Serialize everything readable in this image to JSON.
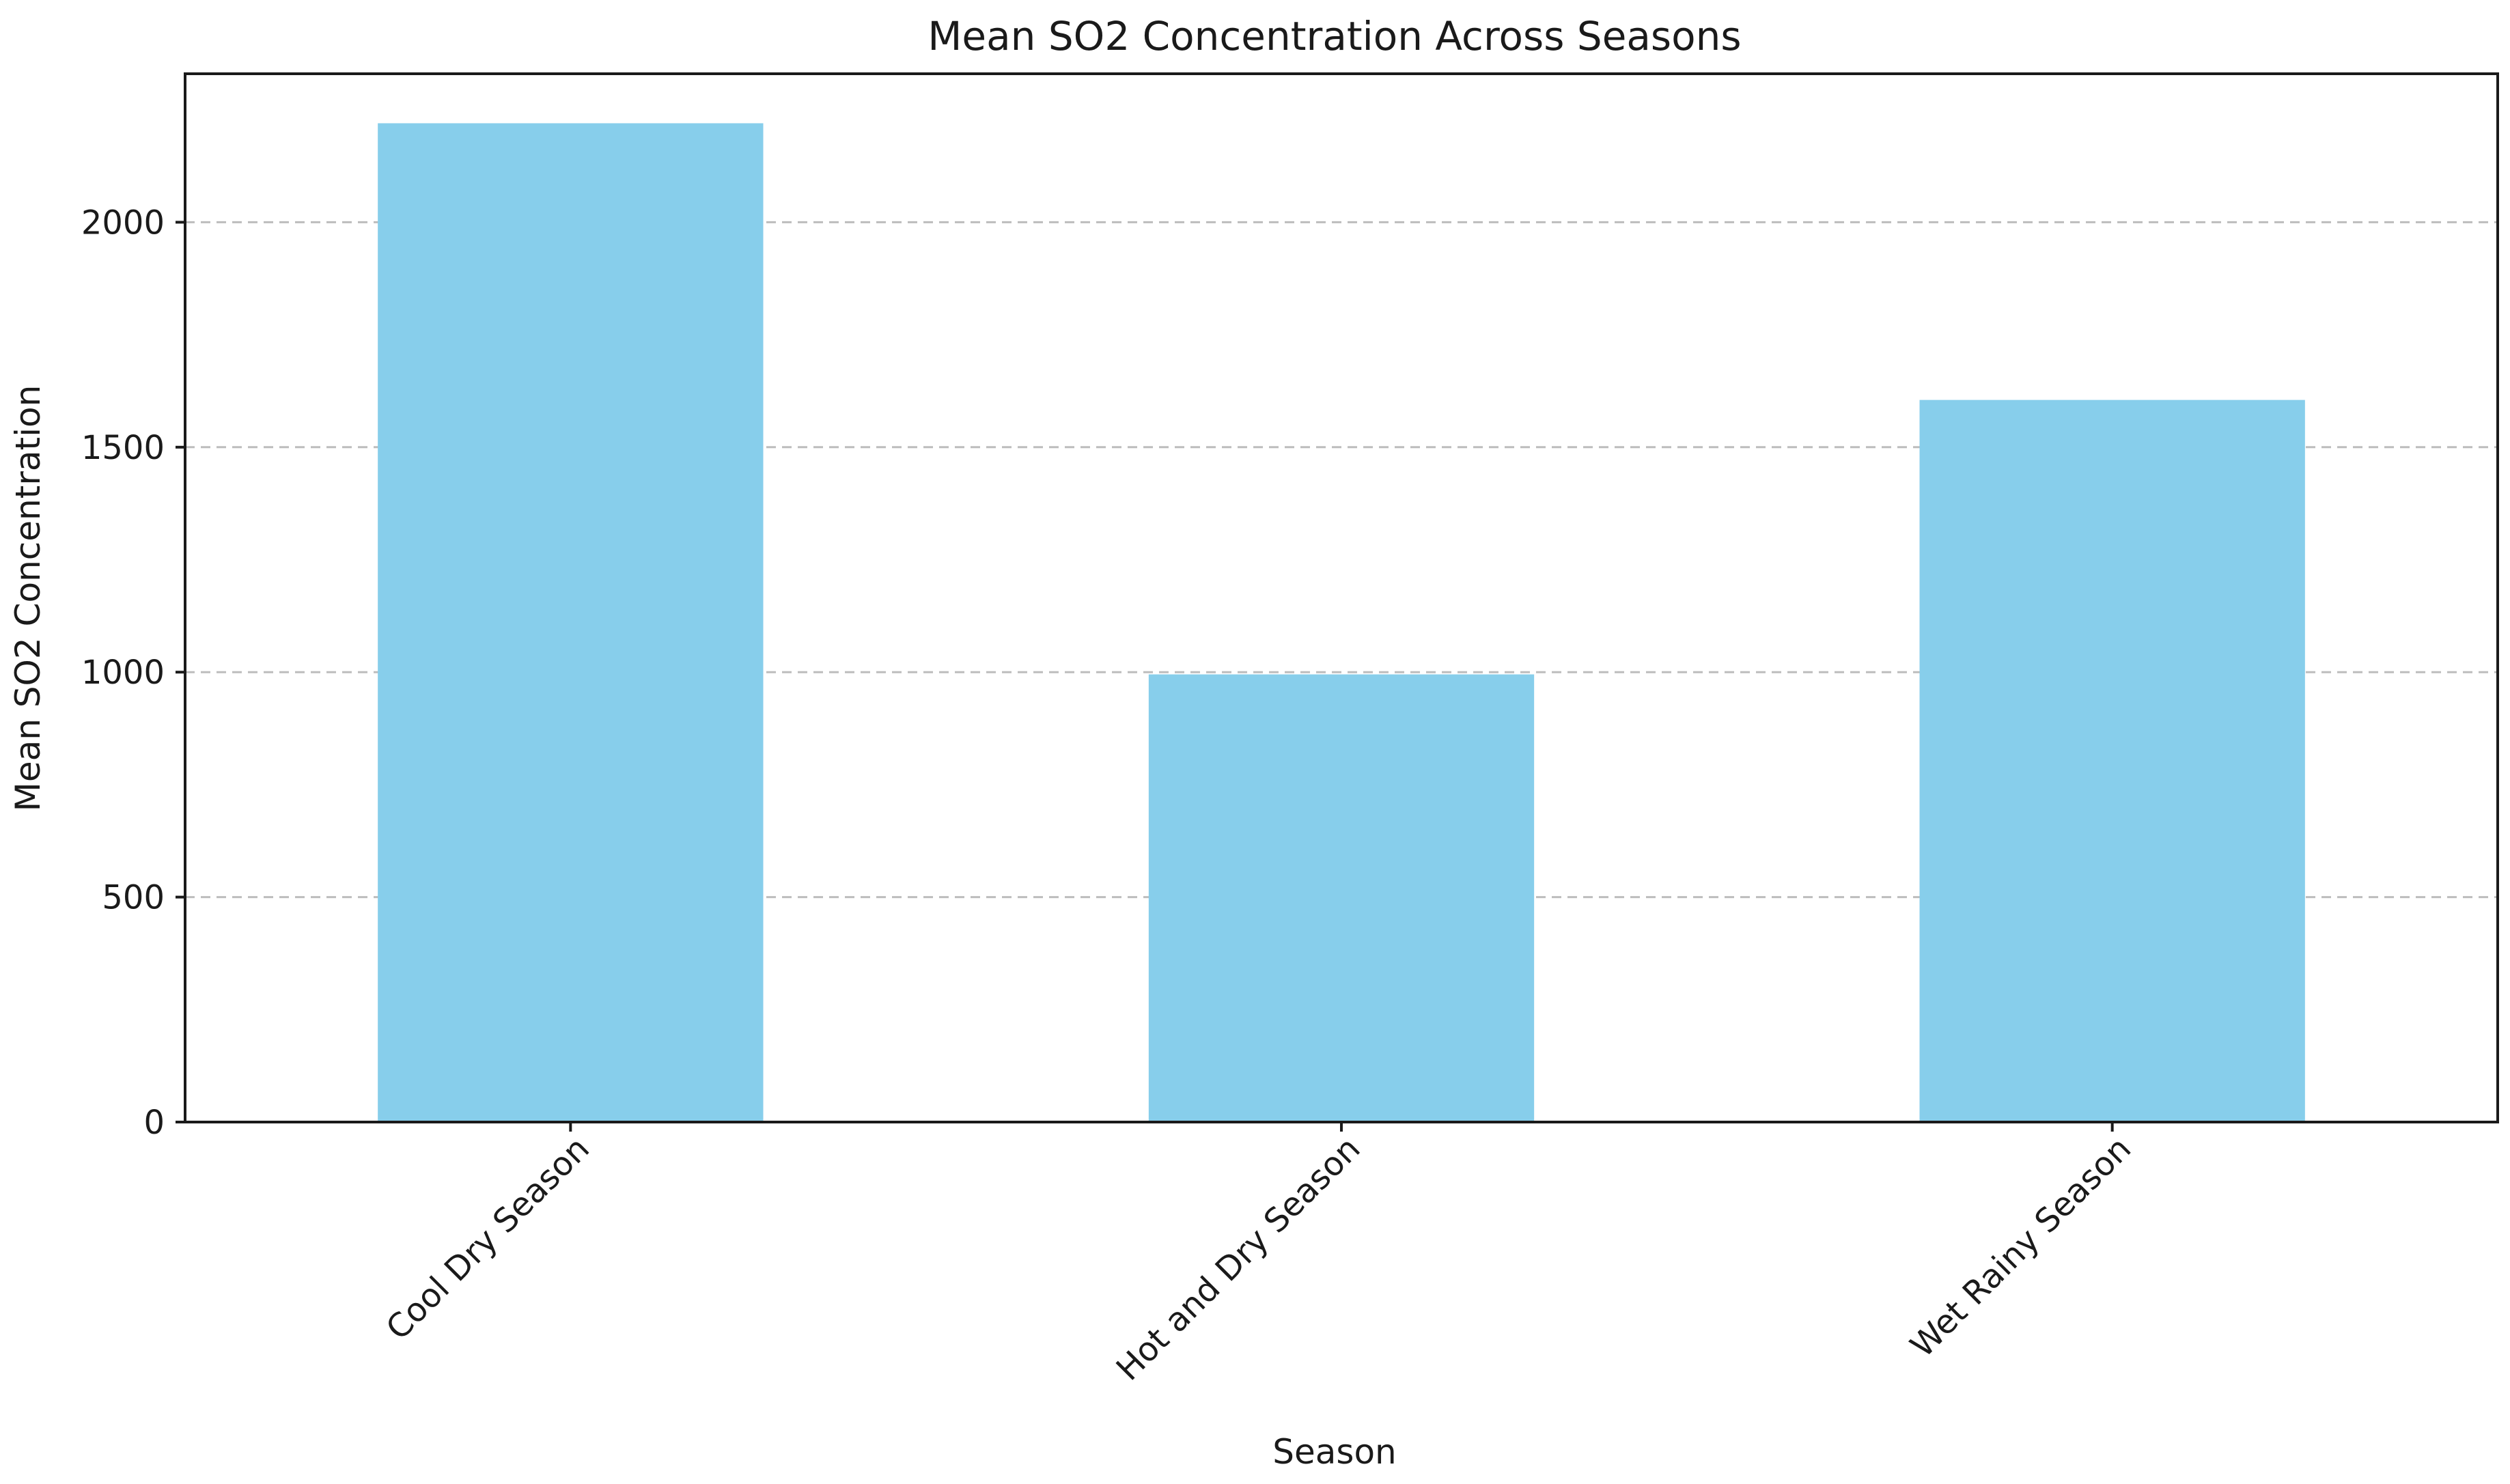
{
  "chart_data": {
    "type": "bar",
    "title": "Mean SO2 Concentration Across Seasons",
    "xlabel": "Season",
    "ylabel": "Mean SO2 Concentration",
    "categories": [
      "Cool Dry Season",
      "Hot and Dry Season",
      "Wet Rainy Season"
    ],
    "values": [
      2220,
      995,
      1605
    ],
    "ylim": [
      0,
      2330
    ],
    "yticks": [
      0,
      500,
      1000,
      1500,
      2000
    ],
    "grid": "y-dashed",
    "legend": "none",
    "bar_color": "#87CEEB"
  }
}
